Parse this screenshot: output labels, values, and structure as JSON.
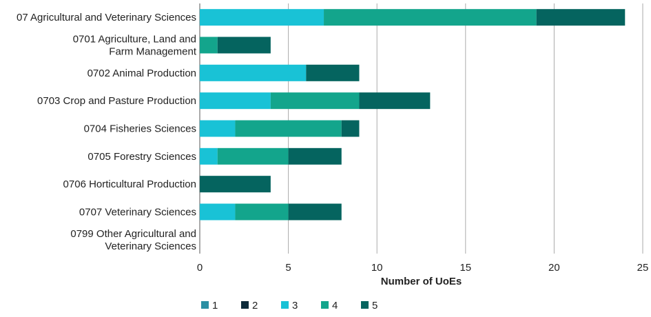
{
  "chart_data": {
    "type": "bar",
    "orientation": "horizontal",
    "stacked": true,
    "categories": [
      [
        "07 Agricultural and Veterinary Sciences"
      ],
      [
        "0701 Agriculture, Land and",
        "Farm Management"
      ],
      [
        "0702 Animal Production"
      ],
      [
        "0703 Crop and Pasture Production"
      ],
      [
        "0704 Fisheries Sciences"
      ],
      [
        "0705 Forestry Sciences"
      ],
      [
        "0706 Horticultural Production"
      ],
      [
        "0707 Veterinary Sciences"
      ],
      [
        "0799 Other Agricultural and",
        "Veterinary Sciences"
      ]
    ],
    "series": [
      {
        "name": "1",
        "color": "#2b8fa3",
        "values": [
          0,
          0,
          0,
          0,
          0,
          0,
          0,
          0,
          0
        ]
      },
      {
        "name": "2",
        "color": "#0d2b3a",
        "values": [
          0,
          0,
          0,
          0,
          0,
          0,
          0,
          0,
          0
        ]
      },
      {
        "name": "3",
        "color": "#19c2d6",
        "values": [
          7,
          0,
          6,
          4,
          2,
          1,
          0,
          2,
          0
        ]
      },
      {
        "name": "4",
        "color": "#13a58c",
        "values": [
          12,
          1,
          0,
          5,
          6,
          4,
          0,
          3,
          0
        ]
      },
      {
        "name": "5",
        "color": "#05645f",
        "values": [
          5,
          3,
          3,
          4,
          1,
          3,
          4,
          3,
          0
        ]
      }
    ],
    "xlabel": "Number of UoEs",
    "xlim": [
      0,
      25
    ],
    "xticks": [
      0,
      5,
      10,
      15,
      20,
      25
    ],
    "grid": "vertical",
    "legend": "bottom"
  }
}
